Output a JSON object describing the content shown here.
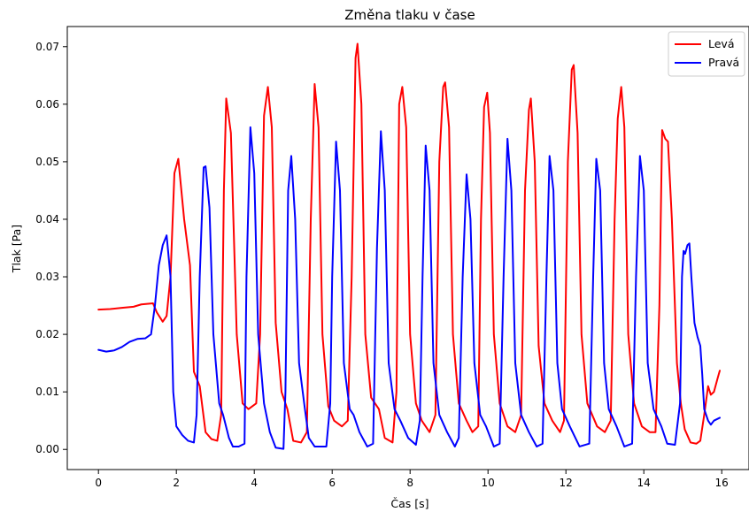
{
  "chart_data": {
    "type": "line",
    "title": "Změna tlaku v čase",
    "xlabel": "Čas [s]",
    "ylabel": "Tlak [Pa]",
    "xlim": [
      -0.8,
      16.7
    ],
    "ylim": [
      -0.0035,
      0.0735
    ],
    "xticks": [
      0,
      2,
      4,
      6,
      8,
      10,
      12,
      14,
      16
    ],
    "xtick_labels": [
      "0",
      "2",
      "4",
      "6",
      "8",
      "10",
      "12",
      "14",
      "16"
    ],
    "yticks": [
      0.0,
      0.01,
      0.02,
      0.03,
      0.04,
      0.05,
      0.06,
      0.07
    ],
    "ytick_labels": [
      "0.00",
      "0.01",
      "0.02",
      "0.03",
      "0.04",
      "0.05",
      "0.06",
      "0.07"
    ],
    "grid": false,
    "legend_position": "top-right",
    "series": [
      {
        "name": "Levá",
        "color": "#ff0000",
        "points": [
          [
            0.0,
            0.0243
          ],
          [
            0.3,
            0.0244
          ],
          [
            0.6,
            0.0246
          ],
          [
            0.9,
            0.0248
          ],
          [
            1.1,
            0.0252
          ],
          [
            1.4,
            0.0254
          ],
          [
            1.5,
            0.0238
          ],
          [
            1.65,
            0.0222
          ],
          [
            1.75,
            0.0232
          ],
          [
            1.85,
            0.03
          ],
          [
            1.95,
            0.048
          ],
          [
            2.05,
            0.0505
          ],
          [
            2.2,
            0.04
          ],
          [
            2.35,
            0.032
          ],
          [
            2.45,
            0.0135
          ],
          [
            2.6,
            0.011
          ],
          [
            2.75,
            0.003
          ],
          [
            2.9,
            0.0018
          ],
          [
            3.05,
            0.0015
          ],
          [
            3.15,
            0.006
          ],
          [
            3.22,
            0.045
          ],
          [
            3.28,
            0.061
          ],
          [
            3.4,
            0.055
          ],
          [
            3.55,
            0.02
          ],
          [
            3.7,
            0.008
          ],
          [
            3.85,
            0.007
          ],
          [
            4.05,
            0.008
          ],
          [
            4.15,
            0.02
          ],
          [
            4.25,
            0.058
          ],
          [
            4.35,
            0.063
          ],
          [
            4.45,
            0.056
          ],
          [
            4.55,
            0.022
          ],
          [
            4.7,
            0.01
          ],
          [
            4.85,
            0.007
          ],
          [
            5.0,
            0.0015
          ],
          [
            5.2,
            0.0012
          ],
          [
            5.35,
            0.003
          ],
          [
            5.45,
            0.04
          ],
          [
            5.55,
            0.0635
          ],
          [
            5.65,
            0.056
          ],
          [
            5.75,
            0.02
          ],
          [
            5.9,
            0.0075
          ],
          [
            6.05,
            0.005
          ],
          [
            6.25,
            0.004
          ],
          [
            6.4,
            0.005
          ],
          [
            6.5,
            0.03
          ],
          [
            6.6,
            0.068
          ],
          [
            6.65,
            0.0705
          ],
          [
            6.75,
            0.06
          ],
          [
            6.85,
            0.02
          ],
          [
            7.0,
            0.009
          ],
          [
            7.2,
            0.007
          ],
          [
            7.35,
            0.002
          ],
          [
            7.55,
            0.0012
          ],
          [
            7.65,
            0.01
          ],
          [
            7.72,
            0.06
          ],
          [
            7.8,
            0.063
          ],
          [
            7.9,
            0.056
          ],
          [
            8.0,
            0.02
          ],
          [
            8.15,
            0.008
          ],
          [
            8.3,
            0.005
          ],
          [
            8.5,
            0.003
          ],
          [
            8.65,
            0.006
          ],
          [
            8.75,
            0.05
          ],
          [
            8.85,
            0.063
          ],
          [
            8.9,
            0.0638
          ],
          [
            9.0,
            0.056
          ],
          [
            9.1,
            0.02
          ],
          [
            9.25,
            0.008
          ],
          [
            9.45,
            0.005
          ],
          [
            9.6,
            0.003
          ],
          [
            9.75,
            0.004
          ],
          [
            9.82,
            0.04
          ],
          [
            9.9,
            0.0595
          ],
          [
            9.98,
            0.062
          ],
          [
            10.05,
            0.055
          ],
          [
            10.15,
            0.02
          ],
          [
            10.3,
            0.008
          ],
          [
            10.5,
            0.004
          ],
          [
            10.7,
            0.003
          ],
          [
            10.85,
            0.006
          ],
          [
            10.95,
            0.045
          ],
          [
            11.05,
            0.059
          ],
          [
            11.1,
            0.061
          ],
          [
            11.2,
            0.05
          ],
          [
            11.3,
            0.018
          ],
          [
            11.45,
            0.008
          ],
          [
            11.65,
            0.005
          ],
          [
            11.85,
            0.003
          ],
          [
            11.95,
            0.005
          ],
          [
            12.05,
            0.05
          ],
          [
            12.15,
            0.066
          ],
          [
            12.2,
            0.0668
          ],
          [
            12.3,
            0.055
          ],
          [
            12.4,
            0.02
          ],
          [
            12.55,
            0.008
          ],
          [
            12.8,
            0.004
          ],
          [
            13.0,
            0.003
          ],
          [
            13.15,
            0.005
          ],
          [
            13.25,
            0.04
          ],
          [
            13.33,
            0.0575
          ],
          [
            13.42,
            0.063
          ],
          [
            13.5,
            0.056
          ],
          [
            13.6,
            0.02
          ],
          [
            13.75,
            0.008
          ],
          [
            13.95,
            0.004
          ],
          [
            14.15,
            0.003
          ],
          [
            14.3,
            0.003
          ],
          [
            14.4,
            0.025
          ],
          [
            14.47,
            0.0555
          ],
          [
            14.55,
            0.054
          ],
          [
            14.62,
            0.0535
          ],
          [
            14.72,
            0.04
          ],
          [
            14.85,
            0.015
          ],
          [
            14.95,
            0.008
          ],
          [
            15.05,
            0.0035
          ],
          [
            15.2,
            0.0012
          ],
          [
            15.35,
            0.001
          ],
          [
            15.45,
            0.0015
          ],
          [
            15.55,
            0.006
          ],
          [
            15.65,
            0.011
          ],
          [
            15.72,
            0.0095
          ],
          [
            15.8,
            0.01
          ],
          [
            15.9,
            0.0125
          ],
          [
            15.95,
            0.0137
          ]
        ]
      },
      {
        "name": "Pravá",
        "color": "#0000ff",
        "points": [
          [
            0.0,
            0.0173
          ],
          [
            0.2,
            0.017
          ],
          [
            0.4,
            0.0172
          ],
          [
            0.6,
            0.0178
          ],
          [
            0.8,
            0.0187
          ],
          [
            1.0,
            0.0192
          ],
          [
            1.2,
            0.0193
          ],
          [
            1.35,
            0.02
          ],
          [
            1.45,
            0.025
          ],
          [
            1.55,
            0.032
          ],
          [
            1.65,
            0.0355
          ],
          [
            1.75,
            0.0372
          ],
          [
            1.85,
            0.03
          ],
          [
            1.92,
            0.01
          ],
          [
            2.0,
            0.004
          ],
          [
            2.15,
            0.0025
          ],
          [
            2.3,
            0.0015
          ],
          [
            2.45,
            0.0012
          ],
          [
            2.52,
            0.006
          ],
          [
            2.6,
            0.03
          ],
          [
            2.7,
            0.049
          ],
          [
            2.75,
            0.0492
          ],
          [
            2.85,
            0.042
          ],
          [
            2.95,
            0.02
          ],
          [
            3.1,
            0.008
          ],
          [
            3.2,
            0.006
          ],
          [
            3.35,
            0.002
          ],
          [
            3.45,
            0.0005
          ],
          [
            3.6,
            0.0005
          ],
          [
            3.75,
            0.001
          ],
          [
            3.8,
            0.03
          ],
          [
            3.9,
            0.056
          ],
          [
            4.0,
            0.048
          ],
          [
            4.1,
            0.02
          ],
          [
            4.25,
            0.008
          ],
          [
            4.4,
            0.003
          ],
          [
            4.55,
            0.0003
          ],
          [
            4.75,
            0.0001
          ],
          [
            4.8,
            0.01
          ],
          [
            4.87,
            0.045
          ],
          [
            4.95,
            0.051
          ],
          [
            5.05,
            0.04
          ],
          [
            5.15,
            0.015
          ],
          [
            5.3,
            0.007
          ],
          [
            5.4,
            0.002
          ],
          [
            5.55,
            0.0005
          ],
          [
            5.85,
            0.0005
          ],
          [
            5.95,
            0.008
          ],
          [
            6.0,
            0.03
          ],
          [
            6.1,
            0.0535
          ],
          [
            6.2,
            0.045
          ],
          [
            6.3,
            0.015
          ],
          [
            6.45,
            0.007
          ],
          [
            6.55,
            0.006
          ],
          [
            6.7,
            0.003
          ],
          [
            6.9,
            0.0005
          ],
          [
            7.05,
            0.001
          ],
          [
            7.15,
            0.035
          ],
          [
            7.25,
            0.0553
          ],
          [
            7.35,
            0.045
          ],
          [
            7.45,
            0.015
          ],
          [
            7.6,
            0.007
          ],
          [
            7.75,
            0.005
          ],
          [
            7.95,
            0.002
          ],
          [
            8.15,
            0.0008
          ],
          [
            8.25,
            0.005
          ],
          [
            8.32,
            0.03
          ],
          [
            8.4,
            0.0528
          ],
          [
            8.5,
            0.045
          ],
          [
            8.6,
            0.015
          ],
          [
            8.75,
            0.006
          ],
          [
            8.95,
            0.003
          ],
          [
            9.15,
            0.0005
          ],
          [
            9.25,
            0.002
          ],
          [
            9.35,
            0.03
          ],
          [
            9.45,
            0.0478
          ],
          [
            9.55,
            0.04
          ],
          [
            9.65,
            0.015
          ],
          [
            9.8,
            0.006
          ],
          [
            9.95,
            0.004
          ],
          [
            10.15,
            0.0005
          ],
          [
            10.3,
            0.001
          ],
          [
            10.4,
            0.03
          ],
          [
            10.5,
            0.054
          ],
          [
            10.6,
            0.045
          ],
          [
            10.7,
            0.015
          ],
          [
            10.85,
            0.006
          ],
          [
            11.05,
            0.003
          ],
          [
            11.25,
            0.0005
          ],
          [
            11.4,
            0.001
          ],
          [
            11.5,
            0.03
          ],
          [
            11.58,
            0.051
          ],
          [
            11.68,
            0.045
          ],
          [
            11.78,
            0.015
          ],
          [
            11.9,
            0.007
          ],
          [
            12.1,
            0.004
          ],
          [
            12.35,
            0.0005
          ],
          [
            12.6,
            0.001
          ],
          [
            12.7,
            0.03
          ],
          [
            12.78,
            0.0505
          ],
          [
            12.88,
            0.045
          ],
          [
            12.98,
            0.015
          ],
          [
            13.1,
            0.007
          ],
          [
            13.3,
            0.004
          ],
          [
            13.5,
            0.0005
          ],
          [
            13.7,
            0.001
          ],
          [
            13.8,
            0.03
          ],
          [
            13.9,
            0.051
          ],
          [
            14.0,
            0.045
          ],
          [
            14.1,
            0.015
          ],
          [
            14.25,
            0.007
          ],
          [
            14.45,
            0.004
          ],
          [
            14.6,
            0.001
          ],
          [
            14.8,
            0.0008
          ],
          [
            14.93,
            0.008
          ],
          [
            14.98,
            0.03
          ],
          [
            15.02,
            0.0345
          ],
          [
            15.06,
            0.034
          ],
          [
            15.12,
            0.0355
          ],
          [
            15.17,
            0.0358
          ],
          [
            15.22,
            0.03
          ],
          [
            15.3,
            0.022
          ],
          [
            15.38,
            0.0195
          ],
          [
            15.45,
            0.018
          ],
          [
            15.5,
            0.013
          ],
          [
            15.55,
            0.007
          ],
          [
            15.65,
            0.005
          ],
          [
            15.72,
            0.0043
          ],
          [
            15.8,
            0.005
          ],
          [
            15.95,
            0.0055
          ]
        ]
      }
    ]
  }
}
